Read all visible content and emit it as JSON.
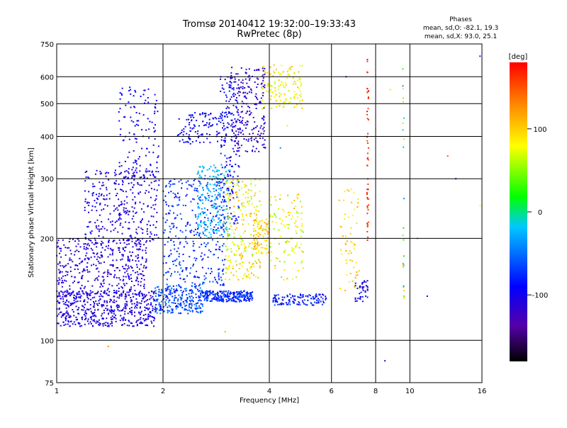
{
  "chart_data": {
    "type": "scatter",
    "title": "Tromsø 20140412 19:32:00–19:33:43",
    "subtitle": "RwPretec (8p)",
    "xlabel": "Frequency [MHz]",
    "ylabel": "Stationary phase Virtual Height [km]",
    "x_scale": "log",
    "y_scale": "log",
    "xlim": [
      1,
      16
    ],
    "ylim": [
      75,
      750
    ],
    "x_ticks": [
      1,
      2,
      4,
      6,
      8,
      10,
      16
    ],
    "y_ticks": [
      75,
      100,
      200,
      300,
      400,
      500,
      600,
      750
    ],
    "grid": true,
    "legend_title": "Phases",
    "legend_lines": [
      "mean, sd,O: -82.1, 19.3",
      "mean, sd,X:  93.0, 25.1"
    ],
    "legend_placement": "top-right",
    "colorbar": {
      "label": "[deg]",
      "ticks": [
        100,
        0,
        -100
      ],
      "range": [
        -180,
        180
      ],
      "colors": [
        "#000000",
        "#5500aa",
        "#0000ff",
        "#00c8ff",
        "#00ff00",
        "#ffff00",
        "#ff8800",
        "#ff0000"
      ]
    },
    "clusters": [
      {
        "f": [
          1.0,
          1.9
        ],
        "h": [
          110,
          140
        ],
        "phase": [
          -120,
          -90
        ],
        "n": 500
      },
      {
        "f": [
          1.0,
          1.8
        ],
        "h": [
          135,
          200
        ],
        "phase": [
          -125,
          -95
        ],
        "n": 420
      },
      {
        "f": [
          1.2,
          1.95
        ],
        "h": [
          195,
          320
        ],
        "phase": [
          -120,
          -90
        ],
        "n": 300
      },
      {
        "f": [
          1.5,
          1.95
        ],
        "h": [
          300,
          560
        ],
        "phase": [
          -115,
          -85
        ],
        "n": 130
      },
      {
        "f": [
          1.9,
          2.6
        ],
        "h": [
          120,
          145
        ],
        "phase": [
          -90,
          -40
        ],
        "n": 260
      },
      {
        "f": [
          2.0,
          3.0
        ],
        "h": [
          145,
          300
        ],
        "phase": [
          -95,
          -55
        ],
        "n": 340
      },
      {
        "f": [
          2.2,
          3.0
        ],
        "h": [
          380,
          470
        ],
        "phase": [
          -110,
          -80
        ],
        "n": 110
      },
      {
        "f": [
          2.5,
          3.1
        ],
        "h": [
          200,
          330
        ],
        "phase": [
          -40,
          -10
        ],
        "n": 200
      },
      {
        "f": [
          2.6,
          3.6
        ],
        "h": [
          130,
          140
        ],
        "phase": [
          -90,
          -60
        ],
        "n": 230
      },
      {
        "f": [
          2.9,
          3.3
        ],
        "h": [
          220,
          600
        ],
        "phase": [
          -105,
          -75
        ],
        "n": 170
      },
      {
        "f": [
          3.1,
          3.9
        ],
        "h": [
          360,
          640
        ],
        "phase": [
          -130,
          -100
        ],
        "n": 220
      },
      {
        "f": [
          3.0,
          3.8
        ],
        "h": [
          150,
          300
        ],
        "phase": [
          50,
          120
        ],
        "n": 220
      },
      {
        "f": [
          3.6,
          4.0
        ],
        "h": [
          180,
          230
        ],
        "phase": [
          80,
          130
        ],
        "n": 90
      },
      {
        "f": [
          3.8,
          5.0
        ],
        "h": [
          480,
          650
        ],
        "phase": [
          60,
          110
        ],
        "n": 130
      },
      {
        "f": [
          4.0,
          5.0
        ],
        "h": [
          150,
          270
        ],
        "phase": [
          40,
          120
        ],
        "n": 110
      },
      {
        "f": [
          4.1,
          5.8
        ],
        "h": [
          127,
          137
        ],
        "phase": [
          -110,
          -60
        ],
        "n": 120
      },
      {
        "f": [
          6.3,
          7.2
        ],
        "h": [
          130,
          280
        ],
        "phase": [
          70,
          120
        ],
        "n": 60
      },
      {
        "f": [
          7.0,
          7.6
        ],
        "h": [
          130,
          150
        ],
        "phase": [
          -120,
          -80
        ],
        "n": 40
      }
    ],
    "columns": [
      {
        "f": 7.6,
        "h": [
          190,
          680
        ],
        "phase": [
          150,
          175
        ],
        "n": 50
      },
      {
        "f": 9.6,
        "h": [
          130,
          660
        ],
        "phase": [
          -40,
          120
        ],
        "n": 25
      }
    ],
    "outliers": [
      {
        "f": 1.4,
        "h": 96,
        "phase": 130
      },
      {
        "f": 3.0,
        "h": 106,
        "phase": 40
      },
      {
        "f": 8.5,
        "h": 87,
        "phase": -110
      },
      {
        "f": 10.5,
        "h": 200,
        "phase": -20
      },
      {
        "f": 11.2,
        "h": 135,
        "phase": -100
      },
      {
        "f": 13.5,
        "h": 300,
        "phase": -110
      },
      {
        "f": 12.8,
        "h": 350,
        "phase": 150
      },
      {
        "f": 15.8,
        "h": 690,
        "phase": -80
      },
      {
        "f": 15.8,
        "h": 250,
        "phase": 80
      },
      {
        "f": 8.0,
        "h": 420,
        "phase": 80
      },
      {
        "f": 8.8,
        "h": 550,
        "phase": 90
      },
      {
        "f": 4.5,
        "h": 430,
        "phase": 90
      },
      {
        "f": 4.3,
        "h": 370,
        "phase": -40
      },
      {
        "f": 6.6,
        "h": 600,
        "phase": -100
      }
    ]
  }
}
